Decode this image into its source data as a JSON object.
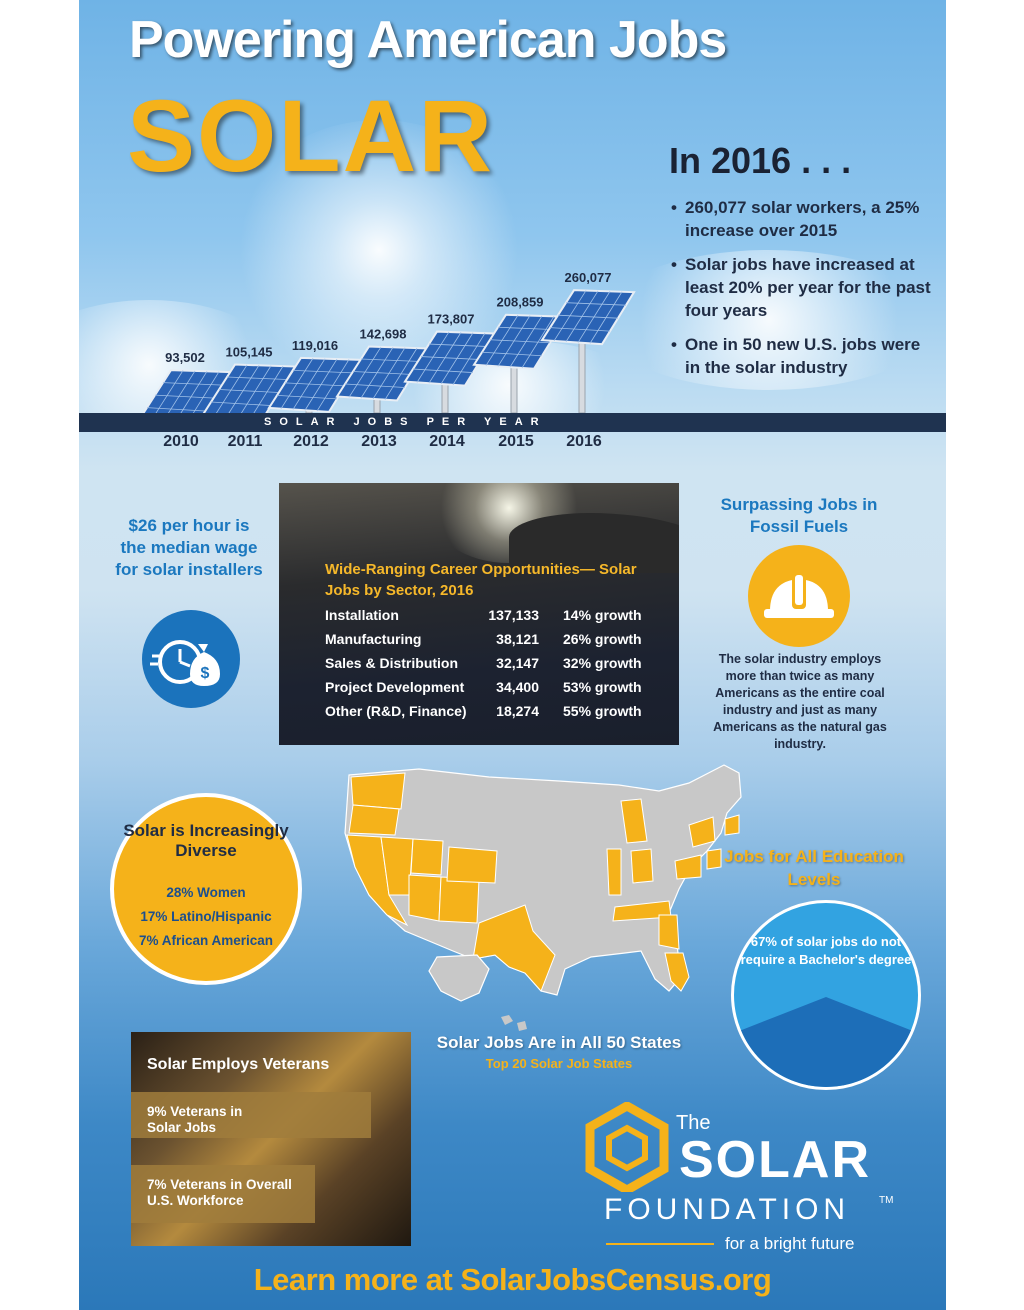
{
  "header": {
    "title": "Powering American Jobs",
    "subtitle": "SOLAR"
  },
  "chart_data": {
    "type": "bar",
    "categories": [
      "2010",
      "2011",
      "2012",
      "2013",
      "2014",
      "2015",
      "2016"
    ],
    "values": [
      93502,
      105145,
      119016,
      142698,
      173807,
      208859,
      260077
    ],
    "value_labels": [
      "93,502",
      "105,145",
      "119,016",
      "142,698",
      "173,807",
      "208,859",
      "260,077"
    ],
    "xlabel": "SOLAR JOBS PER YEAR",
    "title": "",
    "ylabel": ""
  },
  "summary": {
    "heading": "In 2016 . . .",
    "bullets": [
      "260,077 solar workers, a 25% increase over 2015",
      "Solar jobs have increased at least 20% per year for the past four years",
      "One in 50 new U.S. jobs were in the solar industry"
    ]
  },
  "wage": {
    "text": "$26 per hour is the median wage for solar installers",
    "icon": "clock-money-bag-icon"
  },
  "sectors": {
    "title": "Wide-Ranging Career Opportunities— Solar Jobs by Sector, 2016",
    "rows": [
      {
        "name": "Installation",
        "jobs": "137,133",
        "growth": "14% growth"
      },
      {
        "name": "Manufacturing",
        "jobs": "38,121",
        "growth": "26% growth"
      },
      {
        "name": "Sales & Distribution",
        "jobs": "32,147",
        "growth": "32% growth"
      },
      {
        "name": "Project Development",
        "jobs": "34,400",
        "growth": "53% growth"
      },
      {
        "name": "Other (R&D, Finance)",
        "jobs": "18,274",
        "growth": "55% growth"
      }
    ]
  },
  "fossil": {
    "title": "Surpassing Jobs in Fossil Fuels",
    "text": "The solar industry employs more than twice as many Americans as the entire coal industry and just as many Americans as the natural gas industry.",
    "icon": "hard-hat-icon"
  },
  "diversity": {
    "title": "Solar is Increasingly Diverse",
    "items": [
      "28% Women",
      "17% Latino/Hispanic",
      "7% African American"
    ]
  },
  "map": {
    "caption": "Solar Jobs Are in All 50 States",
    "subcaption": "Top 20 Solar Job States",
    "highlight_color": "#f5b21a",
    "base_color": "#c8c8c8"
  },
  "education": {
    "title": "Jobs for All Education Levels",
    "text": "67% of solar jobs do not require a Bachelor's degree",
    "share_no_bachelor": 0.67
  },
  "veterans": {
    "title": "Solar Employs Veterans",
    "stat1": "9% Veterans in Solar Jobs",
    "stat2": "7% Veterans in Overall U.S. Workforce"
  },
  "foundation": {
    "the": "The",
    "name": "SOLAR",
    "name2": "FOUNDATION",
    "tm": "TM",
    "tagline": "for a bright future"
  },
  "footer": {
    "cta": "Learn more at SolarJobsCensus.org"
  },
  "colors": {
    "gold": "#f5b21a",
    "blue": "#1b78bf",
    "navy": "#1f3350"
  }
}
